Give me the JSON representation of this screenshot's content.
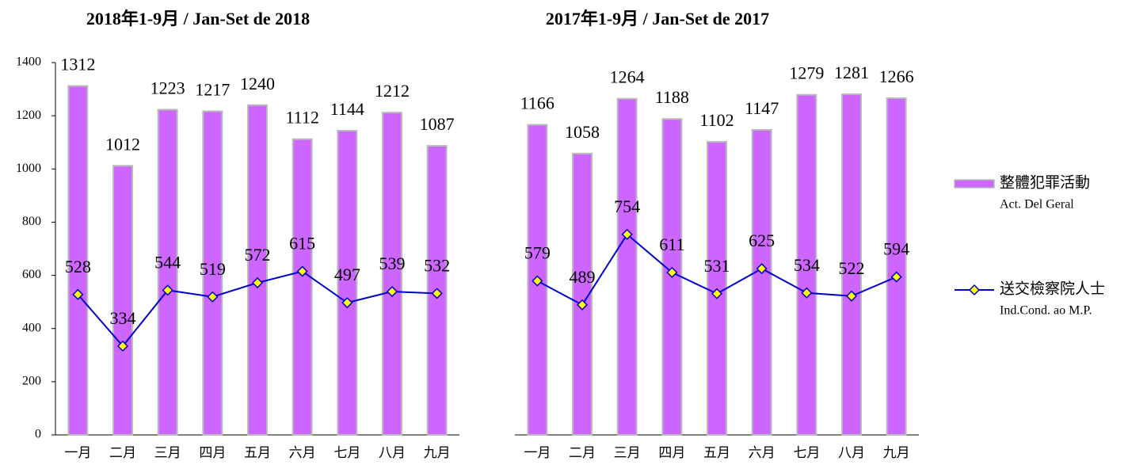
{
  "chart_data": {
    "type": "bar-line",
    "ylim": [
      0,
      1400
    ],
    "yticks": [
      0,
      200,
      400,
      600,
      800,
      1000,
      1200,
      1400
    ],
    "series": [
      {
        "name": [
          "整體犯罪活動",
          "Act. Del Geral"
        ],
        "color": "#cc66ff",
        "kind": "bar"
      },
      {
        "name": [
          "送交檢察院人士",
          "Ind.Cond. ao M.P."
        ],
        "color": "#0000cc",
        "kind": "line"
      }
    ],
    "panels": [
      {
        "title": "2018年1-9月 / Jan-Set de 2018",
        "categories": [
          "一月",
          "二月",
          "三月",
          "四月",
          "五月",
          "六月",
          "七月",
          "八月",
          "九月"
        ],
        "values": [
          [
            1312,
            1012,
            1223,
            1217,
            1240,
            1112,
            1144,
            1212,
            1087
          ],
          [
            528,
            334,
            544,
            519,
            572,
            615,
            497,
            539,
            532
          ]
        ]
      },
      {
        "title": "2017年1-9月 / Jan-Set de 2017",
        "categories": [
          "一月",
          "二月",
          "三月",
          "四月",
          "五月",
          "六月",
          "七月",
          "八月",
          "九月"
        ],
        "values": [
          [
            1166,
            1058,
            1264,
            1188,
            1102,
            1147,
            1279,
            1281,
            1266
          ],
          [
            579,
            489,
            754,
            611,
            531,
            625,
            534,
            522,
            594
          ]
        ]
      }
    ]
  }
}
